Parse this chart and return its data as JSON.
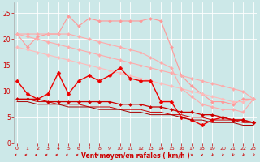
{
  "xlabel": "Vent moyen/en rafales ( km/h )",
  "x": [
    0,
    1,
    2,
    3,
    4,
    5,
    6,
    7,
    8,
    9,
    10,
    11,
    12,
    13,
    14,
    15,
    16,
    17,
    18,
    19,
    20,
    21,
    22,
    23
  ],
  "series": [
    {
      "name": "light_pink_bumpy_top",
      "color": "#ff9999",
      "lw": 0.8,
      "ms": 2.0,
      "marker": "D",
      "y": [
        21.0,
        18.5,
        20.5,
        21.0,
        21.0,
        24.5,
        22.5,
        24.0,
        23.5,
        23.5,
        23.5,
        23.5,
        23.5,
        24.0,
        23.5,
        18.5,
        13.0,
        11.0,
        9.5,
        8.0,
        8.0,
        7.5,
        8.5,
        8.5
      ]
    },
    {
      "name": "pink_diagonal1",
      "color": "#ffaaaa",
      "lw": 0.8,
      "ms": 2.0,
      "marker": "D",
      "y": [
        21.0,
        20.5,
        20.0,
        19.5,
        19.0,
        18.5,
        18.0,
        17.5,
        17.0,
        16.5,
        16.0,
        15.5,
        15.0,
        14.5,
        14.0,
        13.5,
        13.0,
        12.5,
        12.0,
        11.5,
        11.0,
        10.5,
        10.0,
        8.5
      ]
    },
    {
      "name": "pink_diagonal2",
      "color": "#ffbbbb",
      "lw": 0.8,
      "ms": 2.0,
      "marker": "D",
      "y": [
        18.5,
        18.0,
        17.5,
        17.0,
        16.5,
        16.0,
        15.5,
        15.0,
        14.5,
        14.0,
        13.5,
        13.0,
        12.5,
        12.0,
        11.5,
        11.0,
        10.5,
        10.0,
        9.5,
        9.0,
        8.5,
        8.0,
        8.0,
        8.5
      ]
    },
    {
      "name": "mid_pink_line",
      "color": "#ffaaaa",
      "lw": 0.8,
      "ms": 2.0,
      "marker": "D",
      "y": [
        21.0,
        21.0,
        21.0,
        21.0,
        21.0,
        21.0,
        20.5,
        20.0,
        19.5,
        19.0,
        18.5,
        18.0,
        17.5,
        16.5,
        15.5,
        14.5,
        10.5,
        9.0,
        7.5,
        7.0,
        6.5,
        6.5,
        6.0,
        8.5
      ]
    },
    {
      "name": "dark_red_jagged",
      "color": "#ee0000",
      "lw": 1.0,
      "ms": 2.5,
      "marker": "D",
      "y": [
        12.0,
        9.5,
        8.5,
        9.5,
        13.5,
        9.5,
        12.0,
        13.0,
        12.0,
        13.0,
        14.5,
        12.5,
        12.0,
        12.0,
        8.0,
        8.0,
        5.0,
        4.5,
        3.5,
        4.5,
        5.0,
        4.5,
        4.5,
        4.0
      ]
    },
    {
      "name": "dark_red_mid",
      "color": "#cc0000",
      "lw": 0.9,
      "ms": 2.0,
      "marker": "D",
      "y": [
        8.5,
        8.5,
        8.5,
        8.0,
        8.0,
        8.0,
        8.0,
        8.0,
        8.0,
        8.0,
        7.5,
        7.5,
        7.5,
        7.0,
        7.0,
        6.5,
        6.0,
        6.0,
        5.5,
        5.5,
        5.0,
        4.5,
        4.5,
        4.0
      ]
    },
    {
      "name": "dark_red_low1",
      "color": "#cc0000",
      "lw": 0.7,
      "ms": 0,
      "marker": null,
      "y": [
        8.5,
        8.5,
        8.0,
        8.0,
        7.5,
        7.5,
        7.5,
        7.0,
        7.0,
        7.0,
        6.5,
        6.5,
        6.5,
        6.0,
        6.0,
        5.5,
        5.5,
        5.0,
        5.0,
        4.5,
        4.5,
        4.5,
        4.0,
        4.0
      ]
    },
    {
      "name": "dark_red_low2",
      "color": "#aa0000",
      "lw": 0.7,
      "ms": 0,
      "marker": null,
      "y": [
        8.0,
        8.0,
        7.5,
        7.5,
        7.5,
        7.0,
        7.0,
        7.0,
        6.5,
        6.5,
        6.5,
        6.0,
        6.0,
        5.5,
        5.5,
        5.5,
        5.0,
        4.5,
        4.5,
        4.0,
        4.0,
        4.0,
        3.5,
        3.5
      ]
    }
  ],
  "ylim": [
    0,
    27
  ],
  "xlim": [
    -0.3,
    23.3
  ],
  "yticks": [
    0,
    5,
    10,
    15,
    20,
    25
  ],
  "xticks": [
    0,
    1,
    2,
    3,
    4,
    5,
    6,
    7,
    8,
    9,
    10,
    11,
    12,
    13,
    14,
    15,
    16,
    17,
    18,
    19,
    20,
    21,
    22,
    23
  ],
  "bg_color": "#cce8e8",
  "grid_color": "#ffffff",
  "tick_color": "#cc0000",
  "label_color": "#cc0000"
}
